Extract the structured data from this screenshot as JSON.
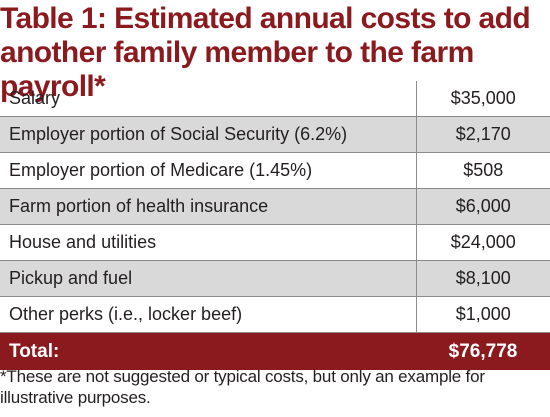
{
  "title": "Table 1: Estimated annual costs to add\nanother family member to the farm payroll*",
  "rows": [
    {
      "item": "Salary",
      "amount": "$35,000"
    },
    {
      "item": "Employer portion of Social Security (6.2%)",
      "amount": "$2,170"
    },
    {
      "item": "Employer portion of Medicare (1.45%)",
      "amount": "$508"
    },
    {
      "item": "Farm portion of health insurance",
      "amount": "$6,000"
    },
    {
      "item": "House and utilities",
      "amount": "$24,000"
    },
    {
      "item": "Pickup and fuel",
      "amount": "$8,100"
    },
    {
      "item": "Other perks (i.e., locker beef)",
      "amount": "$1,000"
    }
  ],
  "total": {
    "label": "Total:",
    "amount": "$76,778"
  },
  "footnote": "*These are not suggested or typical costs, but only an example for illustrative purposes.",
  "colors": {
    "accent": "#8b1a1f",
    "row_shade": "#d9d9d9",
    "text": "#231f20"
  }
}
